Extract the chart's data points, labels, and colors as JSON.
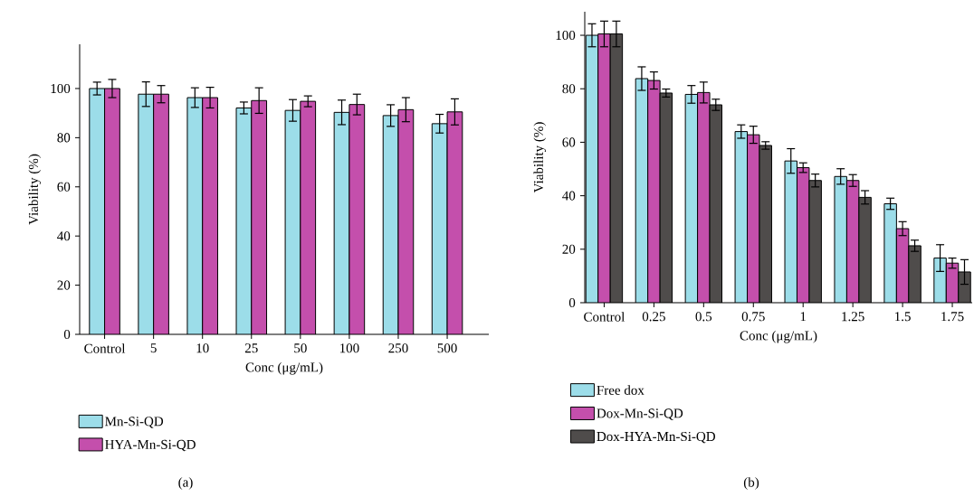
{
  "chart_data": [
    {
      "type": "bar",
      "xlabel": "Conc (μg/mL)",
      "ylabel": "Viability (%)",
      "categories": [
        "Control",
        "5",
        "10",
        "25",
        "50",
        "100",
        "250",
        "500"
      ],
      "ylim": [
        0,
        118
      ],
      "yticks": [
        0,
        20,
        40,
        60,
        80,
        100
      ],
      "legend": "bottom",
      "annotations": [
        "(a)"
      ],
      "series": [
        {
          "name": "Mn-Si-QD",
          "color": "#9cdde9",
          "values": [
            100,
            97.7,
            96.3,
            92.1,
            91.1,
            90.3,
            89,
            85.7
          ],
          "errors": [
            2.6,
            5,
            4,
            2.4,
            4.4,
            5,
            4.4,
            3.8
          ]
        },
        {
          "name": "HYA-Mn-Si-QD",
          "color": "#c44fac",
          "values": [
            100,
            97.7,
            96.3,
            95.1,
            94.8,
            93.5,
            91.4,
            90.5
          ],
          "errors": [
            3.7,
            3.5,
            4.2,
            5.2,
            2.2,
            4.2,
            4.9,
            5.3
          ]
        }
      ]
    },
    {
      "type": "bar",
      "xlabel": "Conc (μg/mL)",
      "ylabel": "Viability (%)",
      "categories": [
        "Control",
        "0.25",
        "0.5",
        "0.75",
        "1",
        "1.25",
        "1.5",
        "1.75"
      ],
      "ylim": [
        0,
        108.8
      ],
      "yticks": [
        0,
        20,
        40,
        60,
        80,
        100
      ],
      "legend": "bottom",
      "annotations": [
        "(b)"
      ],
      "series": [
        {
          "name": "Free dox",
          "color": "#9cdde9",
          "values": [
            100,
            83.8,
            77.9,
            64,
            53,
            47.2,
            37,
            16.7
          ],
          "errors": [
            4.3,
            4.4,
            3.3,
            2.5,
            4.6,
            2.9,
            2.1,
            5
          ]
        },
        {
          "name": "Dox-Mn-Si-QD",
          "color": "#c44fac",
          "values": [
            100.5,
            83.1,
            78.6,
            62.8,
            50.5,
            45.7,
            27.7,
            14.8
          ],
          "errors": [
            4.8,
            3.2,
            3.9,
            3.2,
            1.8,
            2.2,
            2.6,
            1.9
          ]
        },
        {
          "name": "Dox-HYA-Mn-Si-QD",
          "color": "#4f4c4b",
          "values": [
            100.5,
            78.4,
            74,
            58.8,
            45.7,
            39.4,
            21.3,
            11.5
          ],
          "errors": [
            4.8,
            1.5,
            2.1,
            1.4,
            2.4,
            2.5,
            2.1,
            4.6
          ]
        }
      ]
    }
  ]
}
